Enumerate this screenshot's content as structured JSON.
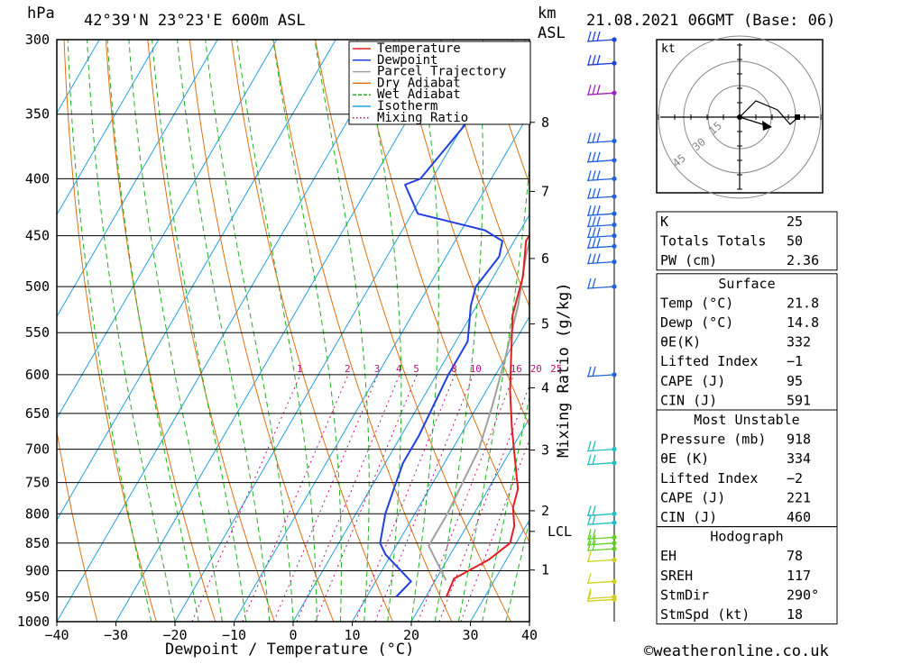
{
  "header": {
    "location": "42°39'N 23°23'E 600m ASL",
    "datetime": "21.08.2021 06GMT (Base: 06)",
    "left_unit": "hPa",
    "km_unit": "km",
    "asl_unit": "ASL",
    "hodo_unit": "kt"
  },
  "footer": {
    "credit": "©weatheronline.co.uk"
  },
  "chart_data": {
    "type": "line",
    "title": "",
    "xlabel": "Dewpoint / Temperature (°C)",
    "ylabel": "hPa",
    "mixing_ratio_axis_label": "Mixing Ratio (g/kg)",
    "xlim": [
      -40,
      40
    ],
    "ylim": [
      1000,
      300
    ],
    "x_ticks": [
      "−40",
      "−30",
      "−20",
      "−10",
      "0",
      "10",
      "20",
      "30",
      "40"
    ],
    "pressure_levels": [
      300,
      350,
      400,
      450,
      500,
      550,
      600,
      650,
      700,
      750,
      800,
      850,
      900,
      950,
      1000
    ],
    "km_ticks": [
      "1",
      "2",
      "3",
      "4",
      "5",
      "6",
      "7",
      "8"
    ],
    "lcl_label": "LCL",
    "mixing_ratio_labels": [
      "1",
      "2",
      "3",
      "4",
      "5",
      "8",
      "10",
      "16",
      "20",
      "25"
    ],
    "legend": {
      "position": "top-right",
      "items": [
        {
          "name": "Temperature",
          "color": "#e02020",
          "style": "solid"
        },
        {
          "name": "Dewpoint",
          "color": "#2040e0",
          "style": "solid"
        },
        {
          "name": "Parcel Trajectory",
          "color": "#a0a0a0",
          "style": "solid"
        },
        {
          "name": "Dry Adiabat",
          "color": "#e07010",
          "style": "solid"
        },
        {
          "name": "Wet Adiabat",
          "color": "#20b020",
          "style": "dashed"
        },
        {
          "name": "Isotherm",
          "color": "#20a0e0",
          "style": "solid"
        },
        {
          "name": "Mixing Ratio",
          "color": "#c01080",
          "style": "dotted"
        }
      ]
    },
    "series": [
      {
        "name": "Temperature",
        "color": "#e02020",
        "points": [
          [
            23.5,
            950
          ],
          [
            23,
            915
          ],
          [
            27,
            880
          ],
          [
            29,
            850
          ],
          [
            28,
            820
          ],
          [
            26,
            790
          ],
          [
            25,
            760
          ],
          [
            22,
            720
          ],
          [
            18,
            670
          ],
          [
            14,
            620
          ],
          [
            11,
            580
          ],
          [
            7,
            530
          ],
          [
            5,
            490
          ],
          [
            2,
            455
          ],
          [
            2,
            445
          ],
          [
            4,
            430
          ],
          [
            -2,
            380
          ],
          [
            -4,
            355
          ],
          [
            -6,
            340
          ],
          [
            -7,
            320
          ],
          [
            -9,
            300
          ]
        ]
      },
      {
        "name": "Dewpoint",
        "color": "#2040e0",
        "points": [
          [
            15,
            950
          ],
          [
            16,
            920
          ],
          [
            9,
            870
          ],
          [
            7,
            850
          ],
          [
            5,
            800
          ],
          [
            4,
            760
          ],
          [
            3,
            720
          ],
          [
            3,
            680
          ],
          [
            2,
            600
          ],
          [
            2,
            560
          ],
          [
            -1,
            520
          ],
          [
            -2,
            500
          ],
          [
            -1,
            470
          ],
          [
            -2,
            455
          ],
          [
            -6,
            445
          ],
          [
            -19,
            430
          ],
          [
            -24,
            405
          ],
          [
            -22,
            400
          ],
          [
            -19,
            345
          ],
          [
            -19,
            335
          ],
          [
            -21,
            330
          ],
          [
            -15,
            300
          ]
        ]
      },
      {
        "name": "Parcel Trajectory",
        "color": "#a0a0a0",
        "points": [
          [
            21.8,
            918
          ],
          [
            15.5,
            855
          ],
          [
            15.5,
            800
          ],
          [
            14.5,
            700
          ],
          [
            12.5,
            640
          ],
          [
            10,
            580
          ],
          [
            7,
            520
          ],
          [
            3.5,
            470
          ],
          [
            1,
            430
          ],
          [
            -2,
            390
          ],
          [
            -5,
            355
          ],
          [
            -8,
            325
          ],
          [
            -10,
            300
          ]
        ]
      }
    ]
  },
  "wind_barb_levels": [
    300,
    315,
    335,
    370,
    385,
    400,
    415,
    430,
    440,
    450,
    460,
    475,
    500,
    600,
    700,
    720,
    800,
    815,
    840,
    850,
    860,
    880,
    920,
    950,
    955
  ],
  "hodograph": {
    "rings": [
      "15",
      "30",
      "45"
    ]
  },
  "stats": {
    "general": [
      {
        "label": "K",
        "value": "25"
      },
      {
        "label": "Totals Totals",
        "value": "50"
      },
      {
        "label": "PW (cm)",
        "value": "2.36"
      }
    ],
    "surface": {
      "title": "Surface",
      "rows": [
        {
          "label": "Temp (°C)",
          "value": "21.8"
        },
        {
          "label": "Dewp (°C)",
          "value": "14.8"
        },
        {
          "label": "θE(K)",
          "value": "332"
        },
        {
          "label": "Lifted Index",
          "value": "−1"
        },
        {
          "label": "CAPE (J)",
          "value": "95"
        },
        {
          "label": "CIN (J)",
          "value": "591"
        }
      ]
    },
    "most_unstable": {
      "title": "Most Unstable",
      "rows": [
        {
          "label": "Pressure (mb)",
          "value": "918"
        },
        {
          "label": "θE (K)",
          "value": "334"
        },
        {
          "label": "Lifted Index",
          "value": "−2"
        },
        {
          "label": "CAPE (J)",
          "value": "221"
        },
        {
          "label": "CIN (J)",
          "value": "460"
        }
      ]
    },
    "hodograph": {
      "title": "Hodograph",
      "rows": [
        {
          "label": "EH",
          "value": "78"
        },
        {
          "label": "SREH",
          "value": "117"
        },
        {
          "label": "StmDir",
          "value": "290°"
        },
        {
          "label": "StmSpd (kt)",
          "value": "18"
        }
      ]
    }
  }
}
